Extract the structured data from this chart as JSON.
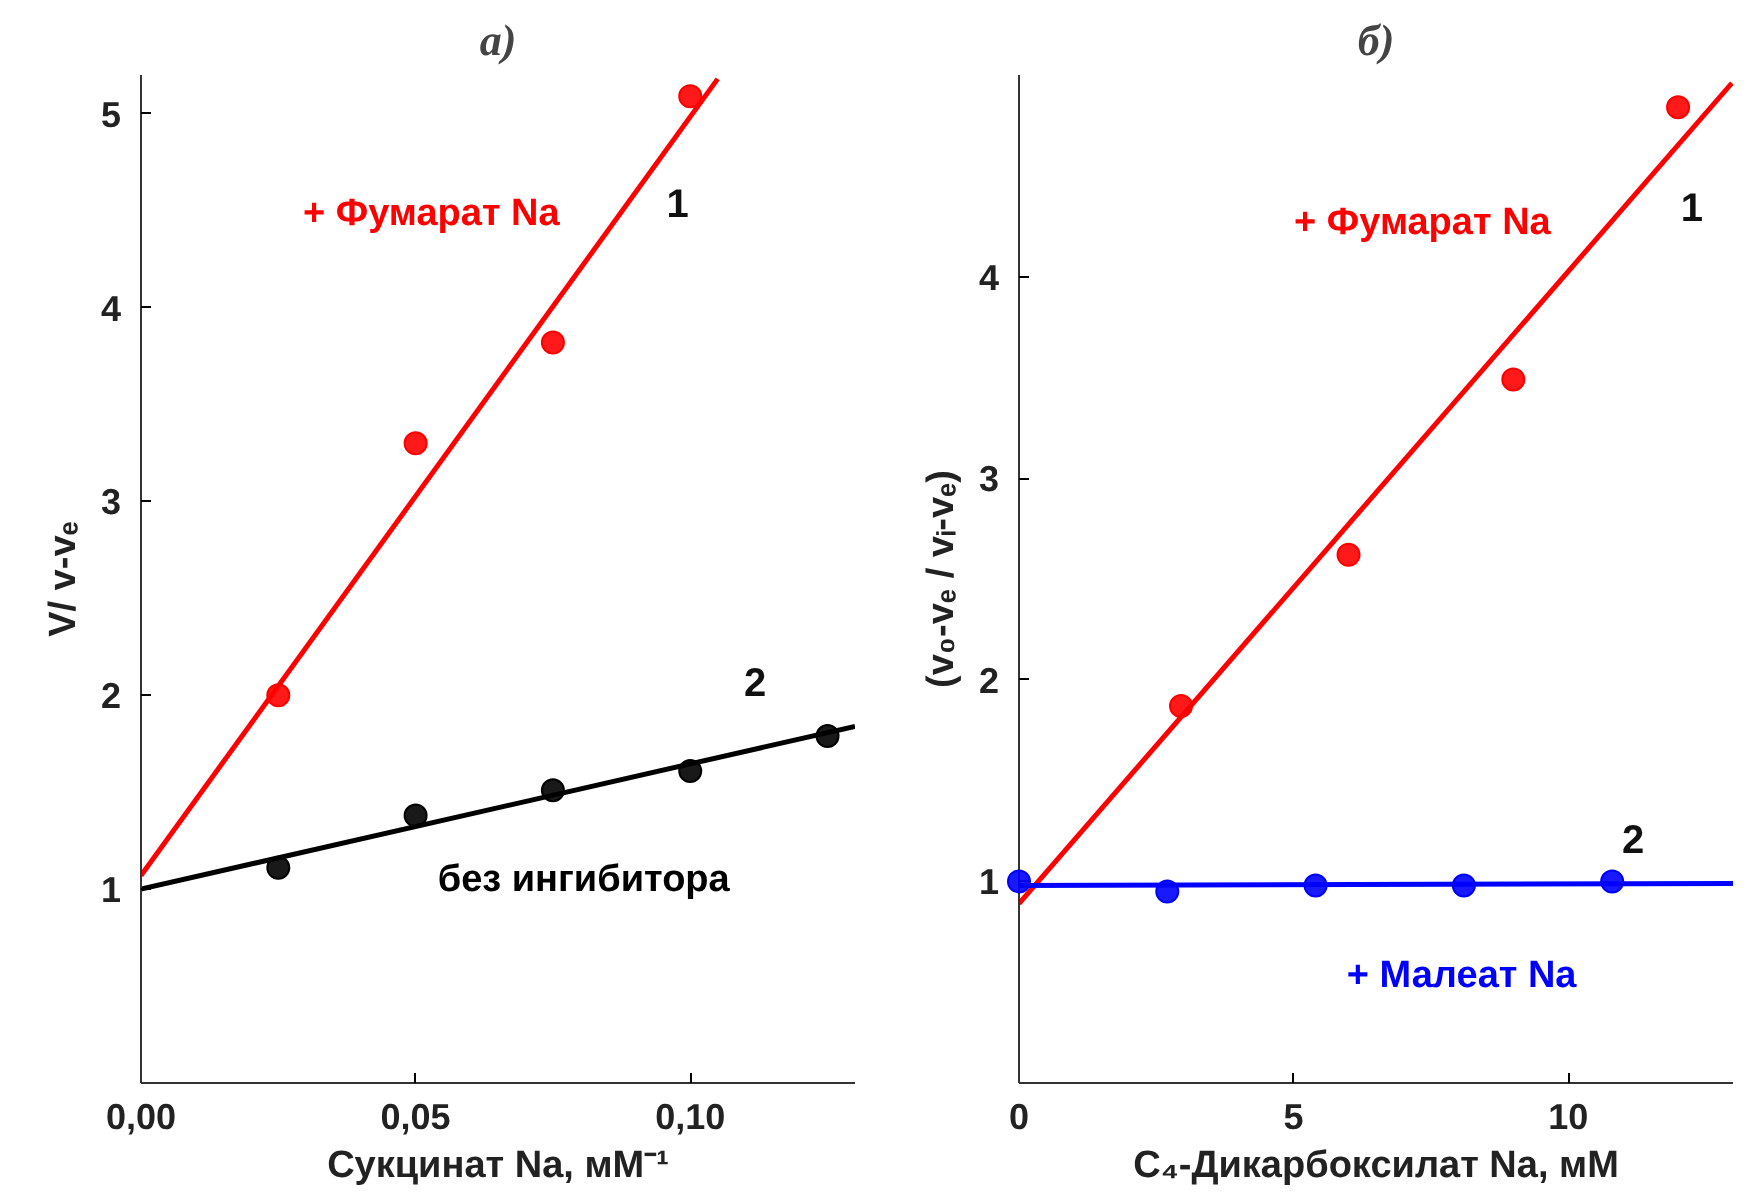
{
  "chart_data": [
    {
      "type": "scatter",
      "title": "а)",
      "xlabel": "Сукцинат Na, мМ⁻¹",
      "ylabel": "V/ v-vₑ",
      "xlim": [
        0,
        0.13
      ],
      "ylim": [
        0,
        5.2
      ],
      "xticks": [
        {
          "value": 0,
          "label": "0,00"
        },
        {
          "value": 0.05,
          "label": "0,05"
        },
        {
          "value": 0.1,
          "label": "0,10"
        }
      ],
      "yticks": [
        1,
        2,
        3,
        4,
        5
      ],
      "grid": false,
      "series": [
        {
          "marker": "circle",
          "color": "#ff0000",
          "x": [
            0.025,
            0.05,
            0.075,
            0.1
          ],
          "values": [
            2.0,
            3.3,
            3.82,
            5.09
          ]
        },
        {
          "type": "line",
          "name": "+ Фумарат Na",
          "color": "#ff0000",
          "x": [
            0,
            0.105
          ],
          "values": [
            1.07,
            5.18
          ]
        },
        {
          "marker": "circle",
          "color": "#000000",
          "x": [
            0.025,
            0.05,
            0.075,
            0.1,
            0.125
          ],
          "values": [
            1.11,
            1.38,
            1.51,
            1.61,
            1.79
          ]
        },
        {
          "type": "line",
          "name": "без ингибитора",
          "color": "#000000",
          "x": [
            0,
            0.13
          ],
          "values": [
            1.0,
            1.84
          ]
        }
      ],
      "annotations": [
        "1",
        "2"
      ]
    },
    {
      "type": "scatter",
      "title": "б)",
      "xlabel": "C₄-Дикарбоксилат Na, мМ",
      "ylabel": "(v₀-vₑ / vᵢ-vₑ)",
      "xlim": [
        0,
        13
      ],
      "ylim": [
        0,
        5
      ],
      "xticks": [
        0,
        5,
        10
      ],
      "yticks": [
        1,
        2,
        3,
        4
      ],
      "grid": false,
      "series": [
        {
          "marker": "circle",
          "color": "#ff0000",
          "x": [
            2.95,
            6.0,
            9.0,
            12.0
          ],
          "values": [
            1.87,
            2.62,
            3.49,
            4.84
          ]
        },
        {
          "type": "line",
          "name": "+ Фумарат Na",
          "color": "#ff0000",
          "x": [
            0,
            12.98
          ],
          "values": [
            0.89,
            4.96
          ]
        },
        {
          "marker": "circle",
          "color": "#0000ff",
          "x": [
            0,
            2.7,
            5.4,
            8.1,
            10.8
          ],
          "values": [
            1.0,
            0.95,
            0.98,
            0.98,
            1.0
          ]
        },
        {
          "type": "line",
          "name": "+ Малеат Na",
          "color": "#0000ff",
          "x": [
            0,
            13
          ],
          "values": [
            0.98,
            0.99
          ]
        }
      ],
      "annotations": [
        "1",
        "2"
      ]
    }
  ]
}
